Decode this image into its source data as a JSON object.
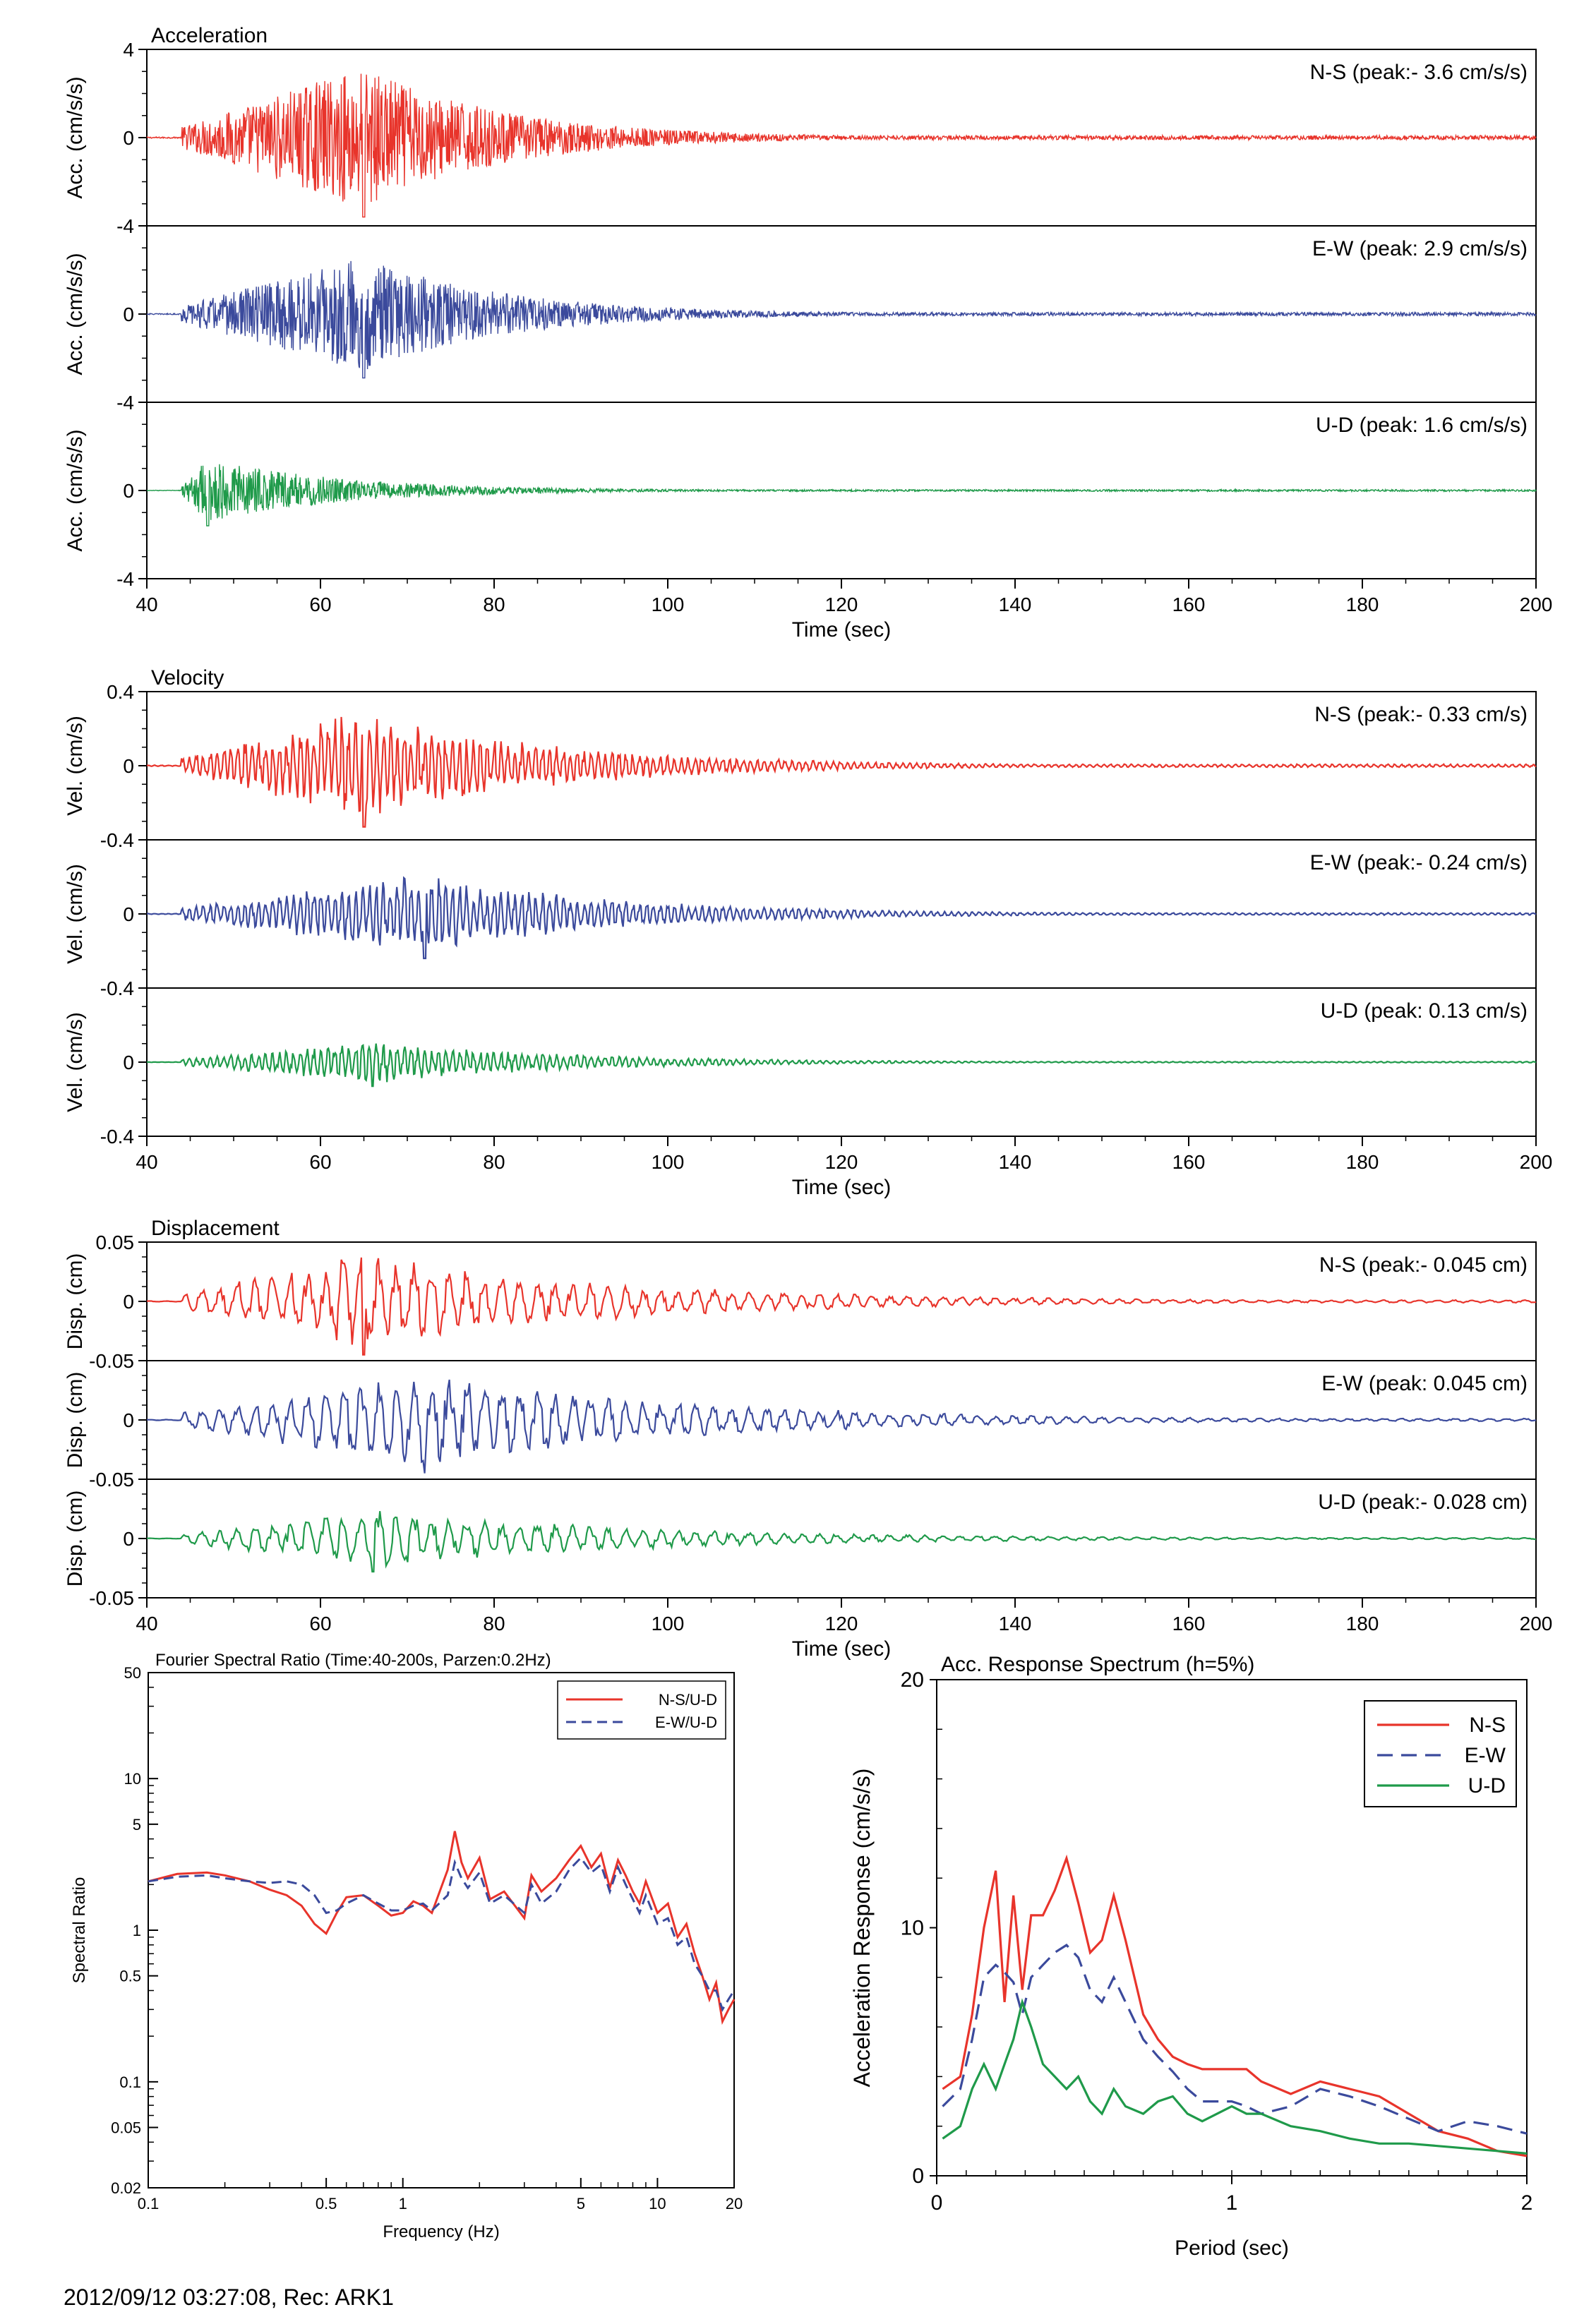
{
  "footer": {
    "caption": "2012/09/12 03:27:08, Rec: ARK1"
  },
  "chart_data": [
    {
      "type": "line",
      "title": "Acceleration",
      "xlabel": "Time (sec)",
      "ylabel": "Acc. (cm/s/s)",
      "xlim": [
        40,
        200
      ],
      "ylim": [
        -4,
        4
      ],
      "x_ticks": [
        "40",
        "60",
        "80",
        "100",
        "120",
        "140",
        "160",
        "180",
        "200"
      ],
      "y_ticks": [
        "4",
        "0",
        "-4"
      ],
      "panels": [
        {
          "component": "N-S",
          "label": "N-S (peak:- 3.6 cm/s/s)",
          "peak": 3.6,
          "color": "#e8342b",
          "onset": 44,
          "max_time": 65
        },
        {
          "component": "E-W",
          "label": "E-W (peak: 2.9 cm/s/s)",
          "peak": 2.9,
          "color": "#3b4a9c",
          "onset": 44,
          "max_time": 65
        },
        {
          "component": "U-D",
          "label": "U-D (peak: 1.6 cm/s/s)",
          "peak": 1.6,
          "color": "#1f9a4a",
          "onset": 44,
          "max_time": 47
        }
      ]
    },
    {
      "type": "line",
      "title": "Velocity",
      "xlabel": "Time (sec)",
      "ylabel": "Vel. (cm/s)",
      "xlim": [
        40,
        200
      ],
      "ylim": [
        -0.4,
        0.4
      ],
      "x_ticks": [
        "40",
        "60",
        "80",
        "100",
        "120",
        "140",
        "160",
        "180",
        "200"
      ],
      "y_ticks": [
        "0.4",
        "0",
        "-0.4"
      ],
      "panels": [
        {
          "component": "N-S",
          "label": "N-S (peak:- 0.33 cm/s)",
          "peak": 0.33,
          "color": "#e8342b",
          "onset": 44,
          "max_time": 65
        },
        {
          "component": "E-W",
          "label": "E-W (peak:- 0.24 cm/s)",
          "peak": 0.24,
          "color": "#3b4a9c",
          "onset": 44,
          "max_time": 72
        },
        {
          "component": "U-D",
          "label": "U-D (peak: 0.13 cm/s)",
          "peak": 0.13,
          "color": "#1f9a4a",
          "onset": 44,
          "max_time": 66
        }
      ]
    },
    {
      "type": "line",
      "title": "Displacement",
      "xlabel": "Time (sec)",
      "ylabel": "Disp. (cm)",
      "xlim": [
        40,
        200
      ],
      "ylim": [
        -0.05,
        0.05
      ],
      "x_ticks": [
        "40",
        "60",
        "80",
        "100",
        "120",
        "140",
        "160",
        "180",
        "200"
      ],
      "y_ticks": [
        "0.05",
        "0",
        "-0.05"
      ],
      "panels": [
        {
          "component": "N-S",
          "label": "N-S (peak:- 0.045 cm)",
          "peak": 0.045,
          "color": "#e8342b",
          "onset": 44,
          "max_time": 65
        },
        {
          "component": "E-W",
          "label": "E-W (peak: 0.045 cm)",
          "peak": 0.045,
          "color": "#3b4a9c",
          "onset": 44,
          "max_time": 72
        },
        {
          "component": "U-D",
          "label": "U-D (peak:- 0.028 cm)",
          "peak": 0.028,
          "color": "#1f9a4a",
          "onset": 44,
          "max_time": 66
        }
      ]
    },
    {
      "type": "line",
      "title": "Fourier Spectral Ratio (Time:40-200s, Parzen:0.2Hz)",
      "xlabel": "Frequency (Hz)",
      "ylabel": "Spectral Ratio",
      "x_scale": "log",
      "y_scale": "log",
      "xlim": [
        0.1,
        20
      ],
      "ylim": [
        0.02,
        50
      ],
      "x_ticks": [
        {
          "v": 0.1,
          "l": "0.1"
        },
        {
          "v": 0.5,
          "l": "0.5"
        },
        {
          "v": 1,
          "l": "1"
        },
        {
          "v": 5,
          "l": "5"
        },
        {
          "v": 10,
          "l": "10"
        },
        {
          "v": 20,
          "l": "20"
        }
      ],
      "y_ticks": [
        {
          "v": 50,
          "l": "50"
        },
        {
          "v": 10,
          "l": "10"
        },
        {
          "v": 5,
          "l": "5"
        },
        {
          "v": 1,
          "l": "1"
        },
        {
          "v": 0.5,
          "l": "0.5"
        },
        {
          "v": 0.1,
          "l": "0.1"
        },
        {
          "v": 0.05,
          "l": "0.05"
        },
        {
          "v": 0.02,
          "l": "0.02"
        }
      ],
      "legend": "top-right",
      "series": [
        {
          "name": "N-S/U-D",
          "color": "#e8342b",
          "dash": "solid",
          "x": [
            0.1,
            0.13,
            0.17,
            0.2,
            0.25,
            0.3,
            0.35,
            0.4,
            0.45,
            0.5,
            0.55,
            0.6,
            0.7,
            0.8,
            0.9,
            1.0,
            1.1,
            1.2,
            1.3,
            1.5,
            1.6,
            1.7,
            1.8,
            2.0,
            2.2,
            2.5,
            3.0,
            3.2,
            3.5,
            4.0,
            4.5,
            5.0,
            5.5,
            6.0,
            6.5,
            7.0,
            7.5,
            8,
            8.5,
            9,
            10,
            11,
            12,
            13,
            14,
            15,
            16,
            17,
            18,
            19,
            20
          ],
          "y": [
            2.1,
            2.35,
            2.4,
            2.3,
            2.1,
            1.85,
            1.7,
            1.45,
            1.1,
            0.95,
            1.3,
            1.65,
            1.7,
            1.45,
            1.25,
            1.3,
            1.55,
            1.45,
            1.3,
            2.5,
            4.5,
            2.8,
            2.2,
            3.0,
            1.6,
            1.8,
            1.2,
            2.3,
            1.8,
            2.2,
            2.9,
            3.6,
            2.6,
            3.2,
            1.9,
            2.9,
            2.3,
            1.8,
            1.5,
            2.1,
            1.3,
            1.5,
            0.9,
            1.1,
            0.7,
            0.5,
            0.35,
            0.45,
            0.25,
            0.3,
            0.35
          ]
        },
        {
          "name": "E-W/U-D",
          "color": "#3b4a9c",
          "dash": "dashed",
          "x": [
            0.1,
            0.13,
            0.17,
            0.2,
            0.25,
            0.3,
            0.35,
            0.4,
            0.45,
            0.5,
            0.55,
            0.6,
            0.7,
            0.8,
            0.9,
            1.0,
            1.1,
            1.2,
            1.3,
            1.5,
            1.6,
            1.7,
            1.8,
            2.0,
            2.2,
            2.5,
            3.0,
            3.2,
            3.5,
            4.0,
            4.5,
            5.0,
            5.5,
            6.0,
            6.5,
            7.0,
            7.5,
            8,
            8.5,
            9,
            10,
            11,
            12,
            13,
            14,
            15,
            16,
            17,
            18,
            19,
            20
          ],
          "y": [
            2.1,
            2.25,
            2.3,
            2.2,
            2.1,
            2.05,
            2.1,
            2.0,
            1.7,
            1.3,
            1.35,
            1.5,
            1.7,
            1.5,
            1.35,
            1.35,
            1.45,
            1.5,
            1.35,
            1.7,
            2.8,
            2.2,
            1.9,
            2.4,
            1.5,
            1.7,
            1.3,
            2.0,
            1.5,
            1.8,
            2.5,
            3.0,
            2.4,
            2.7,
            1.8,
            2.6,
            2.0,
            1.6,
            1.3,
            1.7,
            1.1,
            1.2,
            0.8,
            0.9,
            0.6,
            0.5,
            0.4,
            0.4,
            0.3,
            0.35,
            0.4
          ]
        }
      ]
    },
    {
      "type": "line",
      "title": "Acc. Response Spectrum (h=5%)",
      "xlabel": "Period (sec)",
      "ylabel": "Acceleration Response (cm/s/s)",
      "xlim": [
        0,
        2
      ],
      "ylim": [
        0,
        20
      ],
      "x_ticks": [
        {
          "v": 0,
          "l": "0"
        },
        {
          "v": 1,
          "l": "1"
        },
        {
          "v": 2,
          "l": "2"
        }
      ],
      "y_ticks": [
        {
          "v": 0,
          "l": "0"
        },
        {
          "v": 10,
          "l": "10"
        },
        {
          "v": 20,
          "l": "20"
        }
      ],
      "legend": "top-right",
      "series": [
        {
          "name": "N-S",
          "color": "#e8342b",
          "dash": "solid",
          "x": [
            0.02,
            0.08,
            0.12,
            0.16,
            0.2,
            0.23,
            0.26,
            0.29,
            0.32,
            0.36,
            0.4,
            0.44,
            0.48,
            0.52,
            0.56,
            0.6,
            0.64,
            0.7,
            0.75,
            0.8,
            0.85,
            0.9,
            1.0,
            1.05,
            1.1,
            1.2,
            1.3,
            1.4,
            1.5,
            1.6,
            1.7,
            1.8,
            1.9,
            2.0
          ],
          "y": [
            3.5,
            4.0,
            6.5,
            10.0,
            12.3,
            7.0,
            11.3,
            7.5,
            10.5,
            10.5,
            11.5,
            12.8,
            11.0,
            9.0,
            9.5,
            11.3,
            9.5,
            6.5,
            5.5,
            4.8,
            4.5,
            4.3,
            4.3,
            4.3,
            3.8,
            3.3,
            3.8,
            3.5,
            3.2,
            2.5,
            1.8,
            1.5,
            1.0,
            0.8
          ]
        },
        {
          "name": "E-W",
          "color": "#3b4a9c",
          "dash": "dashed",
          "x": [
            0.02,
            0.08,
            0.12,
            0.16,
            0.2,
            0.23,
            0.26,
            0.29,
            0.32,
            0.36,
            0.4,
            0.44,
            0.48,
            0.52,
            0.56,
            0.6,
            0.64,
            0.7,
            0.75,
            0.8,
            0.85,
            0.9,
            1.0,
            1.05,
            1.1,
            1.2,
            1.3,
            1.4,
            1.5,
            1.6,
            1.7,
            1.8,
            1.9,
            2.0
          ],
          "y": [
            2.8,
            3.5,
            5.5,
            8.0,
            8.5,
            8.2,
            7.8,
            6.5,
            8.0,
            8.5,
            9.0,
            9.3,
            8.8,
            7.5,
            7.0,
            8.0,
            7.0,
            5.5,
            4.8,
            4.2,
            3.5,
            3.0,
            3.0,
            2.8,
            2.5,
            2.8,
            3.5,
            3.2,
            2.8,
            2.3,
            1.8,
            2.2,
            2.0,
            1.7
          ]
        },
        {
          "name": "U-D",
          "color": "#1f9a4a",
          "dash": "solid",
          "x": [
            0.02,
            0.08,
            0.12,
            0.16,
            0.2,
            0.23,
            0.26,
            0.29,
            0.32,
            0.36,
            0.4,
            0.44,
            0.48,
            0.52,
            0.56,
            0.6,
            0.64,
            0.7,
            0.75,
            0.8,
            0.85,
            0.9,
            1.0,
            1.05,
            1.1,
            1.2,
            1.3,
            1.4,
            1.5,
            1.6,
            1.7,
            1.8,
            1.9,
            2.0
          ],
          "y": [
            1.5,
            2.0,
            3.5,
            4.5,
            3.5,
            4.5,
            5.5,
            7.0,
            6.0,
            4.5,
            4.0,
            3.5,
            4.0,
            3.0,
            2.5,
            3.5,
            2.8,
            2.5,
            3.0,
            3.2,
            2.5,
            2.2,
            2.8,
            2.5,
            2.5,
            2.0,
            1.8,
            1.5,
            1.3,
            1.3,
            1.2,
            1.1,
            1.0,
            0.9
          ]
        }
      ]
    }
  ]
}
